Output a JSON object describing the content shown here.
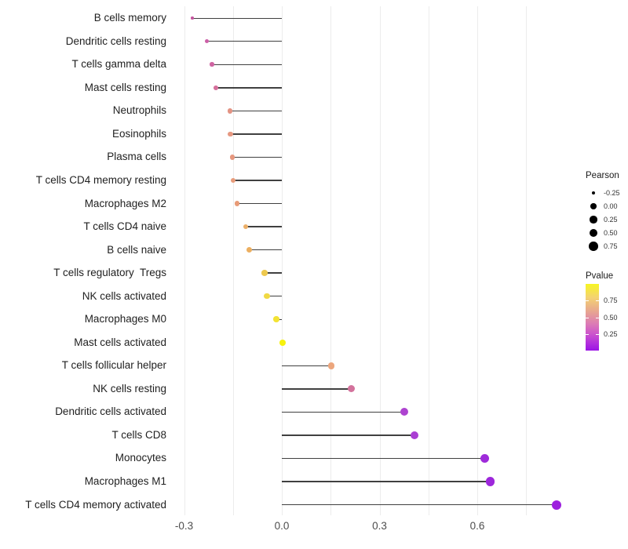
{
  "chart_data": {
    "type": "scatter",
    "variant": "lollipop",
    "title": "",
    "xlabel": "",
    "ylabel": "",
    "x_axis": {
      "tick_labels": [
        "-0.3",
        "0.0",
        "0.3",
        "0.6"
      ],
      "tick_values": [
        -0.3,
        0.0,
        0.3,
        0.6
      ],
      "gridline_values": [
        -0.3,
        -0.15,
        0.0,
        0.15,
        0.3,
        0.45,
        0.6,
        0.75
      ],
      "range": [
        -0.33,
        0.9
      ],
      "grid": "vertical-only"
    },
    "points": [
      {
        "label": "B cells memory",
        "pearson": -0.275,
        "color": "#C4559E"
      },
      {
        "label": "Dendritic cells resting",
        "pearson": -0.231,
        "color": "#CC5FA7"
      },
      {
        "label": "T cells gamma delta",
        "pearson": -0.214,
        "color": "#CF64A2"
      },
      {
        "label": "Mast cells resting",
        "pearson": -0.202,
        "color": "#D56F9B"
      },
      {
        "label": "Neutrophils",
        "pearson": -0.159,
        "color": "#E39383"
      },
      {
        "label": "Eosinophils",
        "pearson": -0.158,
        "color": "#E69881"
      },
      {
        "label": "Plasma cells",
        "pearson": -0.152,
        "color": "#E6977E"
      },
      {
        "label": "T cells CD4 memory resting",
        "pearson": -0.149,
        "color": "#E89C7B"
      },
      {
        "label": "Macrophages M2",
        "pearson": -0.137,
        "color": "#E89B77"
      },
      {
        "label": "T cells CD4 naive",
        "pearson": -0.111,
        "color": "#ECAF68"
      },
      {
        "label": "B cells naive",
        "pearson": -0.101,
        "color": "#ECAF60"
      },
      {
        "label": "T cells regulatory  Tregs",
        "pearson": -0.053,
        "color": "#EEC94F"
      },
      {
        "label": "NK cells activated",
        "pearson": -0.046,
        "color": "#F0D944"
      },
      {
        "label": "Macrophages M0",
        "pearson": -0.017,
        "color": "#F3E334"
      },
      {
        "label": "Mast cells activated",
        "pearson": 0.002,
        "color": "#F7F20D"
      },
      {
        "label": "T cells follicular helper",
        "pearson": 0.152,
        "color": "#ECA67D"
      },
      {
        "label": "NK cells resting",
        "pearson": 0.214,
        "color": "#D3729C"
      },
      {
        "label": "Dendritic cells activated",
        "pearson": 0.376,
        "color": "#AD43D0"
      },
      {
        "label": "T cells CD8",
        "pearson": 0.407,
        "color": "#AA3ED3"
      },
      {
        "label": "Monocytes",
        "pearson": 0.622,
        "color": "#9E2BDA"
      },
      {
        "label": "Macrophages M1",
        "pearson": 0.639,
        "color": "#9D27DB"
      },
      {
        "label": "T cells CD4 memory activated",
        "pearson": 0.843,
        "color": "#9D20DE"
      }
    ],
    "legends": {
      "size": {
        "title": "Pearson",
        "entries": [
          {
            "label": "-0.25",
            "value": -0.25
          },
          {
            "label": "0.00",
            "value": 0.0
          },
          {
            "label": "0.25",
            "value": 0.25
          },
          {
            "label": "0.50",
            "value": 0.5
          },
          {
            "label": "0.75",
            "value": 0.75
          }
        ]
      },
      "color": {
        "title": "Pvalue",
        "ticks": [
          {
            "label": "0.75",
            "value": 0.75
          },
          {
            "label": "0.50",
            "value": 0.5
          },
          {
            "label": "0.25",
            "value": 0.25
          }
        ],
        "scale_range": [
          0,
          1
        ],
        "gradient_top_to_bottom": [
          {
            "at": 0.0,
            "color": "#F7F622"
          },
          {
            "at": 0.2,
            "color": "#F4D371"
          },
          {
            "at": 0.4,
            "color": "#E8A88E"
          },
          {
            "at": 0.6,
            "color": "#DC7BB5"
          },
          {
            "at": 0.75,
            "color": "#CC54CC"
          },
          {
            "at": 0.88,
            "color": "#B331DC"
          },
          {
            "at": 1.0,
            "color": "#9B13E5"
          }
        ]
      }
    },
    "style_colors": {
      "stem": "#404040",
      "gridline": "#ececec",
      "axis_text": "#4d4d4d",
      "category_text": "#1f1f1f",
      "legend_dot": "#000000",
      "background": "#ffffff"
    }
  }
}
